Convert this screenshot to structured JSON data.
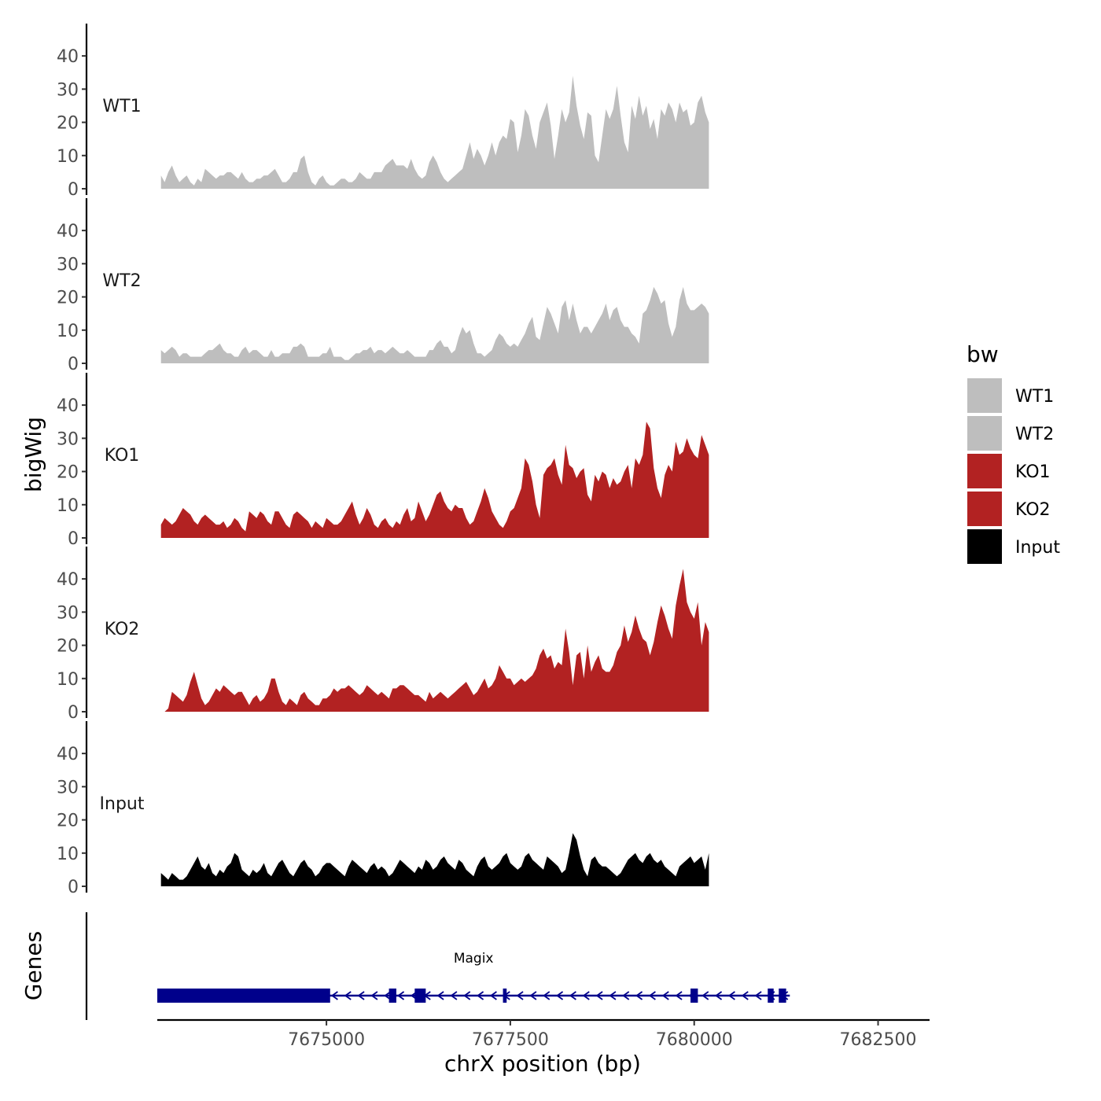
{
  "chart_data": {
    "type": "area",
    "title": "",
    "xlabel": "chrX position (bp)",
    "ylabel": "bigWig",
    "genes_label": "Genes",
    "x_range": [
      7672700,
      7683200
    ],
    "x_ticks": [
      7675000,
      7677500,
      7680000,
      7682500
    ],
    "x_tick_labels": [
      "7675000",
      "7677500",
      "7680000",
      "7682500"
    ],
    "y_range": [
      0,
      45
    ],
    "y_ticks": [
      0,
      10,
      20,
      30,
      40
    ],
    "y_tick_labels": [
      "0",
      "10",
      "20",
      "30",
      "40"
    ],
    "legend": {
      "title": "bw",
      "position": "right"
    },
    "colors": {
      "WT1": "#bebebe",
      "WT2": "#bebebe",
      "KO1": "#b22222",
      "KO2": "#b22222",
      "Input": "#000000",
      "gene": "#00008b"
    },
    "x_start": 7672750,
    "x_step": 50,
    "series": [
      {
        "name": "WT1",
        "values": [
          4,
          2,
          5,
          7,
          4,
          2,
          3,
          4,
          2,
          1,
          3,
          2,
          6,
          5,
          4,
          3,
          4,
          4,
          5,
          5,
          4,
          3,
          5,
          3,
          2,
          2,
          3,
          3,
          4,
          4,
          5,
          6,
          4,
          2,
          2,
          3,
          5,
          5,
          9,
          10,
          5,
          2,
          1,
          3,
          4,
          2,
          1,
          1,
          2,
          3,
          3,
          2,
          2,
          3,
          5,
          4,
          3,
          3,
          5,
          5,
          5,
          7,
          8,
          9,
          7,
          7,
          7,
          6,
          9,
          6,
          4,
          3,
          4,
          8,
          10,
          8,
          5,
          3,
          2,
          3,
          4,
          5,
          6,
          10,
          14,
          9,
          12,
          10,
          7,
          10,
          14,
          10,
          14,
          16,
          15,
          21,
          20,
          11,
          16,
          24,
          22,
          16,
          12,
          20,
          23,
          26,
          19,
          9,
          16,
          24,
          20,
          23,
          34,
          25,
          19,
          15,
          23,
          22,
          10,
          8,
          16,
          24,
          21,
          24,
          31,
          22,
          14,
          11,
          25,
          21,
          28,
          22,
          25,
          18,
          21,
          15,
          24,
          22,
          26,
          24,
          20,
          26,
          23,
          24,
          19,
          20,
          26,
          28,
          23,
          20
        ]
      },
      {
        "name": "WT2",
        "values": [
          4,
          3,
          4,
          5,
          4,
          2,
          3,
          3,
          2,
          2,
          2,
          2,
          3,
          4,
          4,
          5,
          6,
          4,
          3,
          3,
          2,
          2,
          4,
          5,
          3,
          4,
          4,
          3,
          2,
          2,
          4,
          2,
          2,
          3,
          3,
          3,
          5,
          5,
          6,
          5,
          2,
          2,
          2,
          2,
          3,
          3,
          5,
          2,
          2,
          2,
          1,
          1,
          2,
          3,
          3,
          4,
          4,
          5,
          3,
          4,
          4,
          3,
          4,
          5,
          4,
          3,
          3,
          4,
          3,
          2,
          2,
          2,
          2,
          4,
          4,
          6,
          7,
          5,
          5,
          3,
          4,
          8,
          11,
          9,
          10,
          6,
          3,
          3,
          2,
          3,
          4,
          7,
          9,
          8,
          6,
          5,
          6,
          5,
          7,
          9,
          12,
          14,
          8,
          7,
          12,
          17,
          15,
          12,
          9,
          17,
          19,
          13,
          18,
          13,
          9,
          11,
          11,
          9,
          11,
          13,
          15,
          18,
          13,
          16,
          17,
          13,
          11,
          11,
          9,
          8,
          6,
          15,
          16,
          19,
          23,
          21,
          18,
          19,
          12,
          8,
          11,
          19,
          23,
          18,
          16,
          16,
          17,
          18,
          17,
          15
        ]
      },
      {
        "name": "KO1",
        "values": [
          4,
          6,
          5,
          4,
          5,
          7,
          9,
          8,
          7,
          5,
          4,
          6,
          7,
          6,
          5,
          4,
          4,
          5,
          3,
          4,
          6,
          5,
          3,
          2,
          8,
          7,
          6,
          8,
          7,
          5,
          4,
          8,
          8,
          6,
          4,
          3,
          7,
          8,
          7,
          6,
          5,
          3,
          5,
          4,
          3,
          6,
          5,
          4,
          4,
          5,
          7,
          9,
          11,
          7,
          4,
          6,
          9,
          7,
          4,
          3,
          5,
          6,
          4,
          3,
          5,
          4,
          7,
          9,
          5,
          6,
          11,
          8,
          5,
          7,
          10,
          13,
          14,
          11,
          9,
          8,
          10,
          9,
          9,
          6,
          4,
          5,
          8,
          11,
          15,
          12,
          8,
          6,
          4,
          3,
          5,
          8,
          9,
          12,
          15,
          24,
          22,
          17,
          10,
          6,
          19,
          21,
          22,
          24,
          19,
          16,
          28,
          22,
          21,
          18,
          20,
          21,
          13,
          11,
          19,
          17,
          20,
          19,
          15,
          18,
          16,
          17,
          20,
          22,
          15,
          24,
          22,
          25,
          35,
          33,
          21,
          15,
          12,
          19,
          22,
          20,
          29,
          25,
          26,
          30,
          27,
          25,
          24,
          31,
          28,
          25
        ]
      },
      {
        "name": "KO2",
        "values": [
          0,
          0,
          1,
          6,
          5,
          4,
          3,
          5,
          9,
          12,
          8,
          4,
          2,
          3,
          5,
          7,
          6,
          8,
          7,
          6,
          5,
          6,
          6,
          4,
          2,
          4,
          5,
          3,
          4,
          6,
          10,
          10,
          6,
          3,
          2,
          4,
          3,
          2,
          5,
          6,
          4,
          3,
          2,
          2,
          4,
          4,
          5,
          7,
          6,
          7,
          7,
          8,
          7,
          6,
          5,
          6,
          8,
          7,
          6,
          5,
          6,
          5,
          4,
          7,
          7,
          8,
          8,
          7,
          6,
          5,
          5,
          4,
          3,
          6,
          4,
          5,
          6,
          5,
          4,
          5,
          6,
          7,
          8,
          9,
          7,
          5,
          6,
          8,
          10,
          7,
          8,
          10,
          14,
          12,
          10,
          10,
          8,
          9,
          10,
          9,
          10,
          11,
          13,
          17,
          19,
          16,
          17,
          13,
          15,
          14,
          25,
          18,
          8,
          17,
          18,
          10,
          20,
          12,
          15,
          17,
          13,
          12,
          12,
          14,
          18,
          20,
          26,
          21,
          24,
          29,
          25,
          22,
          21,
          17,
          21,
          27,
          32,
          29,
          25,
          22,
          32,
          38,
          43,
          33,
          30,
          28,
          33,
          20,
          27,
          24
        ]
      },
      {
        "name": "Input",
        "values": [
          4,
          3,
          2,
          4,
          3,
          2,
          2,
          3,
          5,
          7,
          9,
          6,
          5,
          7,
          4,
          3,
          5,
          4,
          6,
          7,
          10,
          9,
          5,
          4,
          3,
          5,
          4,
          5,
          7,
          4,
          3,
          5,
          7,
          8,
          6,
          4,
          3,
          5,
          7,
          8,
          6,
          5,
          3,
          4,
          6,
          7,
          7,
          6,
          5,
          4,
          3,
          6,
          8,
          7,
          6,
          5,
          4,
          6,
          7,
          5,
          6,
          5,
          3,
          4,
          6,
          8,
          7,
          6,
          5,
          4,
          6,
          5,
          8,
          7,
          5,
          6,
          8,
          9,
          7,
          6,
          5,
          8,
          7,
          5,
          4,
          3,
          6,
          8,
          9,
          6,
          5,
          6,
          7,
          9,
          10,
          7,
          6,
          5,
          6,
          9,
          10,
          8,
          7,
          6,
          5,
          9,
          8,
          7,
          6,
          4,
          5,
          10,
          16,
          14,
          9,
          5,
          3,
          8,
          9,
          7,
          6,
          6,
          5,
          4,
          3,
          4,
          6,
          8,
          9,
          10,
          8,
          7,
          9,
          10,
          8,
          7,
          8,
          6,
          5,
          4,
          3,
          6,
          7,
          8,
          9,
          7,
          8,
          9,
          5,
          10
        ]
      }
    ],
    "gene": {
      "name": "Magix",
      "strand": "-",
      "start": 7672700,
      "end": 7681300,
      "exons": [
        [
          7672700,
          7675050
        ],
        [
          7675850,
          7675950
        ],
        [
          7676200,
          7676350
        ],
        [
          7677400,
          7677450
        ],
        [
          7679950,
          7680050
        ],
        [
          7681000,
          7681080
        ],
        [
          7681150,
          7681250
        ]
      ]
    }
  }
}
